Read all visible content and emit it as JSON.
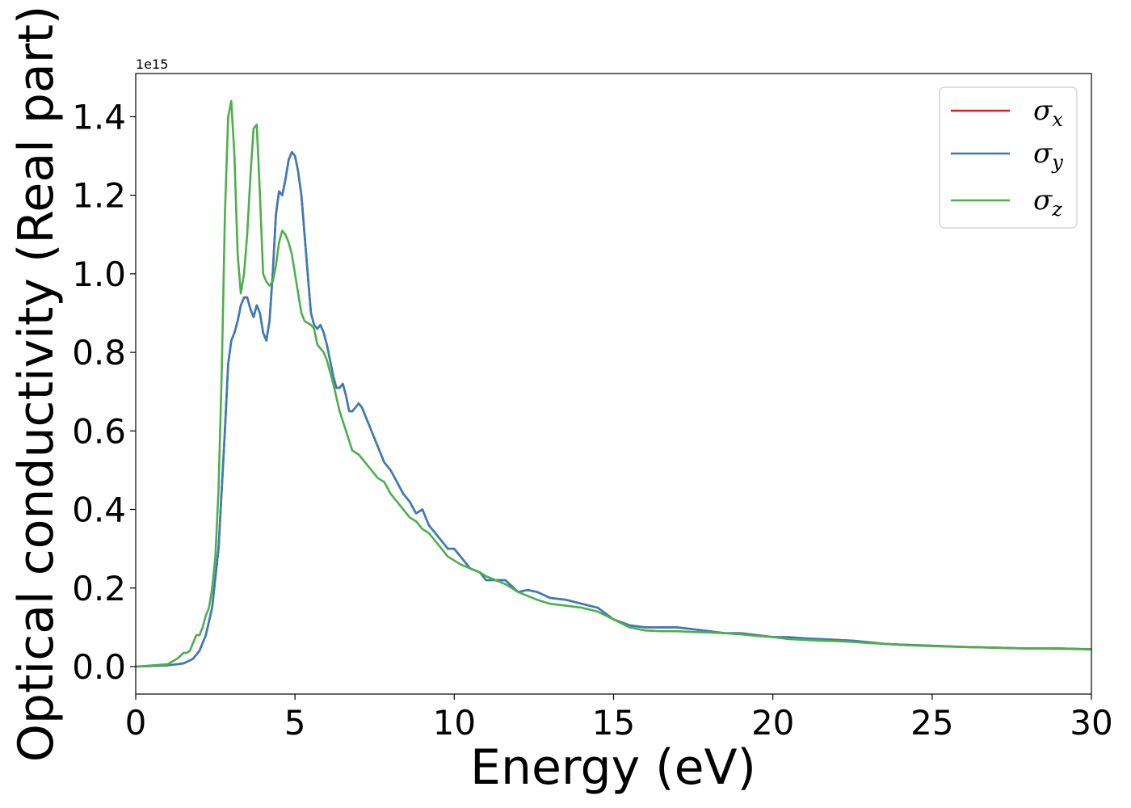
{
  "chart_data": {
    "type": "line",
    "xlabel": "Energy (eV)",
    "ylabel": "Optical conductivity (Real part)",
    "y_offset_label": "1e15",
    "xlim": [
      0,
      30
    ],
    "ylim": [
      -0.07,
      1.51
    ],
    "x_ticks": [
      0,
      5,
      10,
      15,
      20,
      25,
      30
    ],
    "x_tick_labels": [
      "0",
      "5",
      "10",
      "15",
      "20",
      "25",
      "30"
    ],
    "y_ticks": [
      0.0,
      0.2,
      0.4,
      0.6,
      0.8,
      1.0,
      1.2,
      1.4
    ],
    "y_tick_labels": [
      "0.0",
      "0.2",
      "0.4",
      "0.6",
      "0.8",
      "1.0",
      "1.2",
      "1.4"
    ],
    "grid": false,
    "legend_position": "top-right",
    "series": [
      {
        "name": "σx",
        "symbol": "σ",
        "subscript": "x",
        "color": "#e41a1c",
        "x": [
          0,
          1,
          1.5,
          1.8,
          2,
          2.2,
          2.4,
          2.6,
          2.8,
          2.9,
          3,
          3.1,
          3.2,
          3.3,
          3.4,
          3.5,
          3.6,
          3.7,
          3.8,
          3.9,
          4,
          4.1,
          4.2,
          4.3,
          4.4,
          4.5,
          4.6,
          4.7,
          4.8,
          4.9,
          5,
          5.1,
          5.2,
          5.3,
          5.4,
          5.5,
          5.6,
          5.7,
          5.8,
          5.9,
          6,
          6.1,
          6.2,
          6.3,
          6.4,
          6.5,
          6.6,
          6.7,
          6.8,
          6.9,
          7,
          7.1,
          7.2,
          7.3,
          7.4,
          7.5,
          7.6,
          7.8,
          8,
          8.2,
          8.4,
          8.6,
          8.8,
          9,
          9.2,
          9.4,
          9.6,
          9.8,
          10,
          10.2,
          10.5,
          10.8,
          11,
          11.3,
          11.6,
          12,
          12.3,
          12.6,
          13,
          13.5,
          14,
          14.5,
          15,
          15.5,
          16,
          16.5,
          17,
          17.5,
          18,
          18.5,
          19,
          19.5,
          20,
          20.5,
          21,
          21.5,
          22,
          22.5,
          23,
          23.5,
          24,
          25,
          26,
          27,
          28,
          29,
          30
        ],
        "values": [
          0,
          0.003,
          0.008,
          0.02,
          0.04,
          0.08,
          0.15,
          0.3,
          0.6,
          0.77,
          0.83,
          0.85,
          0.88,
          0.92,
          0.94,
          0.94,
          0.91,
          0.89,
          0.92,
          0.9,
          0.85,
          0.83,
          0.88,
          1.0,
          1.15,
          1.21,
          1.2,
          1.24,
          1.29,
          1.31,
          1.3,
          1.26,
          1.2,
          1.1,
          1.0,
          0.9,
          0.87,
          0.86,
          0.87,
          0.85,
          0.82,
          0.78,
          0.74,
          0.71,
          0.71,
          0.72,
          0.69,
          0.65,
          0.65,
          0.66,
          0.67,
          0.66,
          0.64,
          0.62,
          0.6,
          0.58,
          0.56,
          0.52,
          0.5,
          0.47,
          0.44,
          0.42,
          0.39,
          0.4,
          0.36,
          0.34,
          0.32,
          0.3,
          0.3,
          0.28,
          0.25,
          0.24,
          0.22,
          0.22,
          0.22,
          0.19,
          0.195,
          0.19,
          0.175,
          0.17,
          0.16,
          0.15,
          0.12,
          0.105,
          0.1,
          0.1,
          0.1,
          0.095,
          0.09,
          0.085,
          0.085,
          0.08,
          0.075,
          0.075,
          0.072,
          0.07,
          0.068,
          0.066,
          0.062,
          0.058,
          0.056,
          0.053,
          0.05,
          0.048,
          0.046,
          0.046,
          0.044
        ]
      },
      {
        "name": "σy",
        "symbol": "σ",
        "subscript": "y",
        "color": "#377eb8",
        "x": [
          0,
          1,
          1.5,
          1.8,
          2,
          2.2,
          2.4,
          2.6,
          2.8,
          2.9,
          3,
          3.1,
          3.2,
          3.3,
          3.4,
          3.5,
          3.6,
          3.7,
          3.8,
          3.9,
          4,
          4.1,
          4.2,
          4.3,
          4.4,
          4.5,
          4.6,
          4.7,
          4.8,
          4.9,
          5,
          5.1,
          5.2,
          5.3,
          5.4,
          5.5,
          5.6,
          5.7,
          5.8,
          5.9,
          6,
          6.1,
          6.2,
          6.3,
          6.4,
          6.5,
          6.6,
          6.7,
          6.8,
          6.9,
          7,
          7.1,
          7.2,
          7.3,
          7.4,
          7.5,
          7.6,
          7.8,
          8,
          8.2,
          8.4,
          8.6,
          8.8,
          9,
          9.2,
          9.4,
          9.6,
          9.8,
          10,
          10.2,
          10.5,
          10.8,
          11,
          11.3,
          11.6,
          12,
          12.3,
          12.6,
          13,
          13.5,
          14,
          14.5,
          15,
          15.5,
          16,
          16.5,
          17,
          17.5,
          18,
          18.5,
          19,
          19.5,
          20,
          20.5,
          21,
          21.5,
          22,
          22.5,
          23,
          23.5,
          24,
          25,
          26,
          27,
          28,
          29,
          30
        ],
        "values": [
          0,
          0.003,
          0.008,
          0.02,
          0.04,
          0.08,
          0.15,
          0.3,
          0.6,
          0.77,
          0.83,
          0.85,
          0.88,
          0.92,
          0.94,
          0.94,
          0.91,
          0.89,
          0.92,
          0.9,
          0.85,
          0.83,
          0.88,
          1.0,
          1.15,
          1.21,
          1.2,
          1.24,
          1.29,
          1.31,
          1.3,
          1.26,
          1.2,
          1.1,
          1.0,
          0.9,
          0.87,
          0.86,
          0.87,
          0.85,
          0.82,
          0.78,
          0.74,
          0.71,
          0.71,
          0.72,
          0.69,
          0.65,
          0.65,
          0.66,
          0.67,
          0.66,
          0.64,
          0.62,
          0.6,
          0.58,
          0.56,
          0.52,
          0.5,
          0.47,
          0.44,
          0.42,
          0.39,
          0.4,
          0.36,
          0.34,
          0.32,
          0.3,
          0.3,
          0.28,
          0.25,
          0.24,
          0.22,
          0.22,
          0.22,
          0.19,
          0.195,
          0.19,
          0.175,
          0.17,
          0.16,
          0.15,
          0.12,
          0.105,
          0.1,
          0.1,
          0.1,
          0.095,
          0.09,
          0.085,
          0.085,
          0.08,
          0.075,
          0.075,
          0.072,
          0.07,
          0.068,
          0.066,
          0.062,
          0.058,
          0.056,
          0.053,
          0.05,
          0.048,
          0.046,
          0.046,
          0.044
        ]
      },
      {
        "name": "σz",
        "symbol": "σ",
        "subscript": "z",
        "color": "#4daf4a",
        "x": [
          0,
          1,
          1.3,
          1.5,
          1.6,
          1.7,
          1.8,
          1.9,
          2,
          2.1,
          2.2,
          2.3,
          2.4,
          2.5,
          2.6,
          2.7,
          2.8,
          2.9,
          3,
          3.1,
          3.2,
          3.3,
          3.4,
          3.5,
          3.6,
          3.7,
          3.8,
          3.9,
          4,
          4.1,
          4.2,
          4.3,
          4.4,
          4.5,
          4.6,
          4.7,
          4.8,
          4.9,
          5,
          5.1,
          5.2,
          5.3,
          5.4,
          5.5,
          5.6,
          5.7,
          5.8,
          5.9,
          6,
          6.2,
          6.4,
          6.6,
          6.8,
          7,
          7.2,
          7.4,
          7.6,
          7.8,
          8,
          8.2,
          8.4,
          8.6,
          8.8,
          9,
          9.2,
          9.4,
          9.6,
          9.8,
          10,
          10.2,
          10.5,
          10.8,
          11,
          11.3,
          11.6,
          12,
          12.3,
          12.6,
          13,
          13.5,
          14,
          14.5,
          15,
          15.5,
          16,
          16.5,
          17,
          17.5,
          18,
          18.5,
          19,
          19.5,
          20,
          20.5,
          21,
          21.5,
          22,
          22.5,
          23,
          23.5,
          24,
          25,
          26,
          27,
          28,
          29,
          30
        ],
        "values": [
          0,
          0.006,
          0.02,
          0.035,
          0.035,
          0.04,
          0.06,
          0.08,
          0.08,
          0.1,
          0.13,
          0.15,
          0.2,
          0.28,
          0.45,
          0.75,
          1.15,
          1.4,
          1.44,
          1.3,
          1.05,
          0.95,
          1.0,
          1.1,
          1.25,
          1.37,
          1.38,
          1.2,
          1.0,
          0.98,
          0.97,
          0.98,
          1.02,
          1.08,
          1.11,
          1.1,
          1.08,
          1.05,
          1.0,
          0.95,
          0.9,
          0.88,
          0.875,
          0.87,
          0.86,
          0.82,
          0.81,
          0.8,
          0.78,
          0.72,
          0.65,
          0.6,
          0.55,
          0.54,
          0.52,
          0.5,
          0.48,
          0.47,
          0.44,
          0.42,
          0.4,
          0.38,
          0.37,
          0.35,
          0.34,
          0.32,
          0.3,
          0.28,
          0.27,
          0.26,
          0.25,
          0.24,
          0.23,
          0.22,
          0.21,
          0.19,
          0.18,
          0.17,
          0.16,
          0.155,
          0.15,
          0.14,
          0.12,
          0.1,
          0.092,
          0.09,
          0.09,
          0.088,
          0.087,
          0.085,
          0.082,
          0.078,
          0.075,
          0.07,
          0.068,
          0.066,
          0.065,
          0.063,
          0.06,
          0.058,
          0.055,
          0.052,
          0.05,
          0.048,
          0.046,
          0.045,
          0.044
        ]
      }
    ]
  }
}
